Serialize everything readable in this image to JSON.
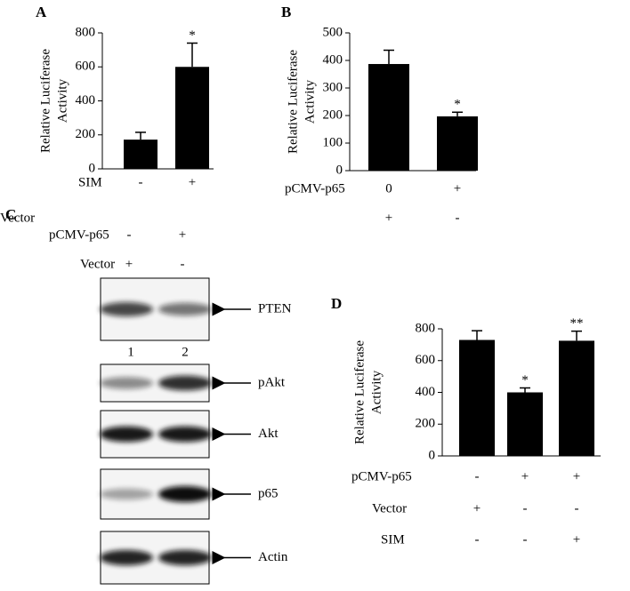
{
  "chart_data": [
    {
      "type": "bar",
      "title": "A",
      "ylabel": [
        "Relative Luciferase",
        "Activity"
      ],
      "values": [
        172,
        600
      ],
      "errors": [
        43,
        140
      ],
      "annotations": [
        null,
        "*"
      ],
      "color": "#000000",
      "ylim": [
        0,
        800
      ],
      "yticks": [
        0,
        200,
        400,
        600,
        800
      ],
      "conditions": [
        {
          "label": "SIM",
          "values": [
            "-",
            "+"
          ]
        }
      ]
    },
    {
      "type": "bar",
      "title": "B",
      "ylabel": [
        "Relative Luciferase",
        "Activity"
      ],
      "values": [
        387,
        197
      ],
      "errors": [
        50,
        15
      ],
      "annotations": [
        null,
        "*"
      ],
      "color": "#000000",
      "ylim": [
        0,
        500
      ],
      "yticks": [
        0,
        100,
        200,
        300,
        400,
        500
      ],
      "conditions": [
        {
          "label": "pCMV-p65",
          "values": [
            "0",
            "+"
          ]
        },
        {
          "label": "Vector",
          "values": [
            "+",
            "-"
          ]
        }
      ]
    },
    {
      "type": "bar",
      "title": "D",
      "ylabel": [
        "Relative Luciferase",
        "Activity"
      ],
      "values": [
        730,
        400,
        725
      ],
      "errors": [
        58,
        28,
        60
      ],
      "annotations": [
        null,
        "*",
        "**"
      ],
      "color": "#000000",
      "ylim": [
        0,
        800
      ],
      "yticks": [
        0,
        200,
        400,
        600,
        800
      ],
      "conditions": [
        {
          "label": "pCMV-p65",
          "values": [
            "-",
            "+",
            "+"
          ]
        },
        {
          "label": "Vector",
          "values": [
            "+",
            "-",
            "-"
          ]
        },
        {
          "label": "SIM",
          "values": [
            "-",
            "-",
            "+"
          ]
        }
      ]
    }
  ],
  "blot": {
    "title": "C",
    "conditions": [
      {
        "label": "pCMV-p65",
        "values": [
          "-",
          "+"
        ]
      },
      {
        "label": "Vector",
        "values": [
          "+",
          "-"
        ]
      }
    ],
    "lanes": [
      "1",
      "2"
    ],
    "proteins": [
      "PTEN",
      "pAkt",
      "Akt",
      "p65",
      "Actin"
    ]
  }
}
